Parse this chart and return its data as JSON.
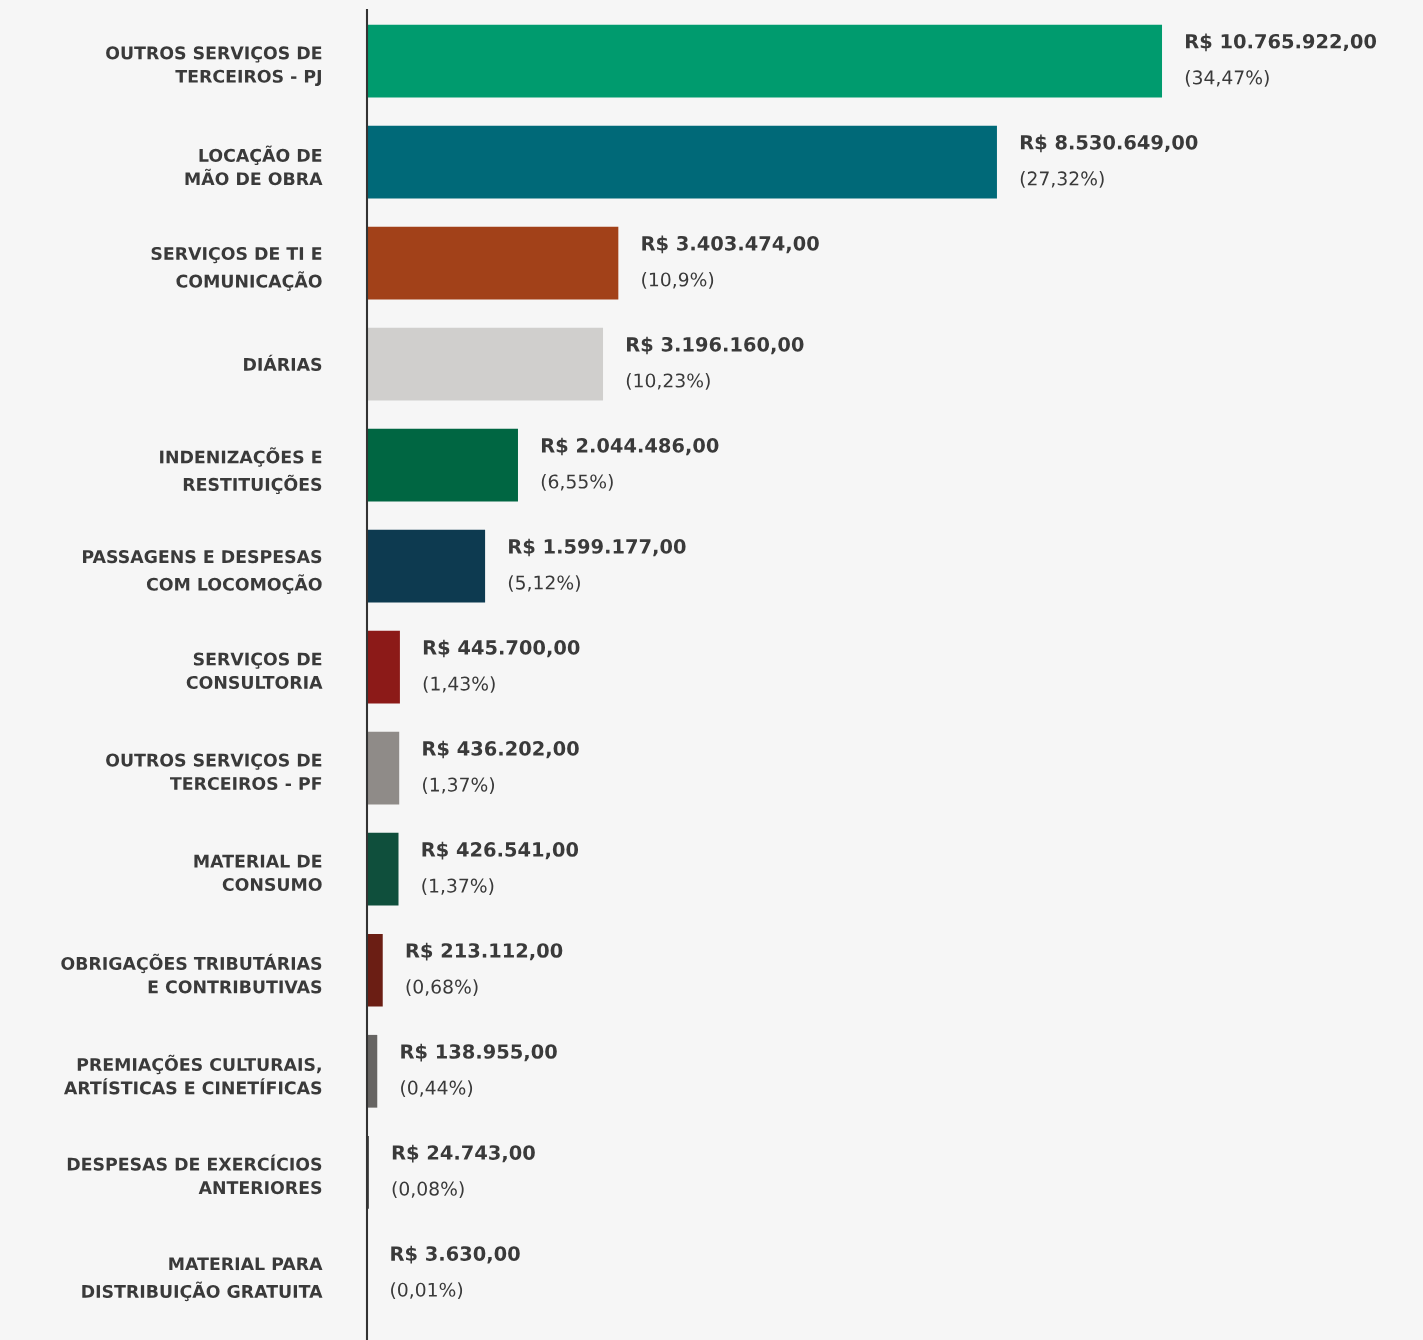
{
  "chart_data": {
    "type": "bar",
    "orientation": "horizontal",
    "tick_labels": "y",
    "categories": [
      "OUTROS SERVIÇOS DE\nTERCEIROS - PJ",
      "LOCAÇÃO DE\nMÃO DE OBRA",
      "SERVIÇOS DE TI E\nCOMUNICAÇÃO",
      "DIÁRIAS",
      "INDENIZAÇÕES E\nRESTITUIÇÕES",
      "PASSAGENS E DESPESAS\nCOM LOCOMOÇÃO",
      "SERVIÇOS DE\nCONSULTORIA",
      "OUTROS SERVIÇOS DE\nTERCEIROS - PF",
      "MATERIAL DE\nCONSUMO",
      "OBRIGAÇÕES TRIBUTÁRIAS\nE CONTRIBUTIVAS",
      "PREMIAÇÕES CULTURAIS,\nARTÍSTICAS E CINETÍFICAS",
      "DESPESAS DE EXERCÍCIOS\nANTERIORES",
      "MATERIAL PARA\nDISTRIBUIÇÃO GRATUITA"
    ],
    "values": [
      10765922,
      8530649,
      3403474,
      3196160,
      2044486,
      1599177,
      445700,
      436202,
      426541,
      213112,
      138955,
      24743,
      3630
    ],
    "colors": [
      "#009b6e",
      "#006978",
      "#a24119",
      "#d0cfcd",
      "#006642",
      "#0d3a50",
      "#8c1a18",
      "#8f8b88",
      "#0f4f3c",
      "#6b1e14",
      "#666462",
      "#333333",
      "#444444"
    ],
    "value_labels": [
      "R$ 10.765.922,00\n(34,47%)",
      "R$ 8.530.649,00\n(27,32%)",
      "R$ 3.403.474,00\n(10,9%)",
      "R$ 3.196.160,00\n(10,23%)",
      "R$ 2.044.486,00\n(6,55%)",
      "R$ 1.599.177,00\n(5,12%)",
      "R$ 445.700,00\n(1,43%)",
      "R$ 436.202,00\n(1,37%)",
      "R$ 426.541,00\n(1,37%)",
      "R$ 213.112,00\n(0,68%)",
      "R$ 138.955,00\n(0,44%)",
      "R$ 24.743,00\n(0,08%)",
      "R$ 3.630,00\n(0,01%)"
    ],
    "xlim": [
      0,
      14300000
    ]
  }
}
